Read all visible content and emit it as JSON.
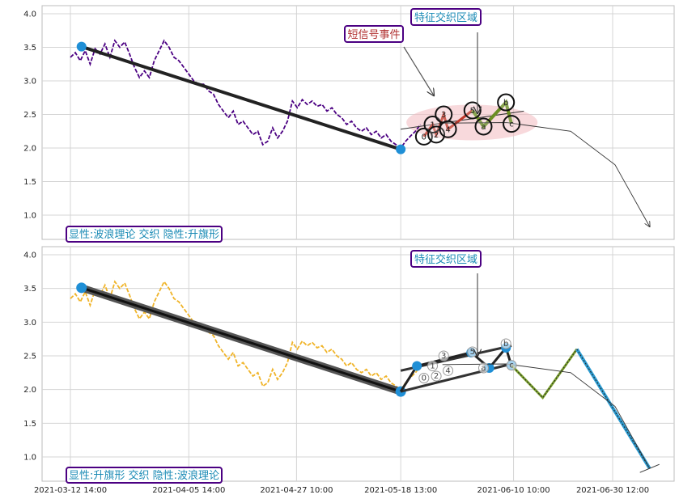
{
  "chart_data": [
    {
      "type": "line",
      "panel": "top",
      "ylim": [
        0.6,
        4.15
      ],
      "yticks": [
        "1.0",
        "1.5",
        "2.0",
        "2.5",
        "3.0",
        "3.5",
        "4.0"
      ],
      "grid": true,
      "price_color": "#4b0082",
      "price_series": [
        [
          "2021-03-12 14:00",
          3.35
        ],
        [
          "2021-03-13 14:00",
          3.42
        ],
        [
          "2021-03-14 14:00",
          3.3
        ],
        [
          "2021-03-15 14:00",
          3.45
        ],
        [
          "2021-03-16 14:00",
          3.25
        ],
        [
          "2021-03-17 14:00",
          3.48
        ],
        [
          "2021-03-18 14:00",
          3.4
        ],
        [
          "2021-03-19 14:00",
          3.55
        ],
        [
          "2021-03-20 14:00",
          3.35
        ],
        [
          "2021-03-21 14:00",
          3.6
        ],
        [
          "2021-03-22 14:00",
          3.5
        ],
        [
          "2021-03-23 14:00",
          3.58
        ],
        [
          "2021-03-24 14:00",
          3.4
        ],
        [
          "2021-03-25 14:00",
          3.2
        ],
        [
          "2021-03-26 14:00",
          3.05
        ],
        [
          "2021-03-27 14:00",
          3.15
        ],
        [
          "2021-03-28 14:00",
          3.05
        ],
        [
          "2021-03-29 14:00",
          3.3
        ],
        [
          "2021-03-30 14:00",
          3.45
        ],
        [
          "2021-03-31 14:00",
          3.6
        ],
        [
          "2021-04-01 14:00",
          3.5
        ],
        [
          "2021-04-02 14:00",
          3.35
        ],
        [
          "2021-04-03 14:00",
          3.3
        ],
        [
          "2021-04-04 14:00",
          3.2
        ],
        [
          "2021-04-05 14:00",
          3.1
        ],
        [
          "2021-04-06 14:00",
          3.0
        ],
        [
          "2021-04-07 14:00",
          2.95
        ],
        [
          "2021-04-08 14:00",
          2.95
        ],
        [
          "2021-04-09 14:00",
          2.85
        ],
        [
          "2021-04-10 14:00",
          2.8
        ],
        [
          "2021-04-11 14:00",
          2.65
        ],
        [
          "2021-04-12 14:00",
          2.55
        ],
        [
          "2021-04-13 14:00",
          2.45
        ],
        [
          "2021-04-14 14:00",
          2.55
        ],
        [
          "2021-04-15 14:00",
          2.35
        ],
        [
          "2021-04-16 14:00",
          2.4
        ],
        [
          "2021-04-17 14:00",
          2.3
        ],
        [
          "2021-04-18 14:00",
          2.2
        ],
        [
          "2021-04-19 14:00",
          2.25
        ],
        [
          "2021-04-20 14:00",
          2.05
        ],
        [
          "2021-04-21 14:00",
          2.1
        ],
        [
          "2021-04-22 14:00",
          2.3
        ],
        [
          "2021-04-23 14:00",
          2.15
        ],
        [
          "2021-04-24 14:00",
          2.25
        ],
        [
          "2021-04-25 14:00",
          2.4
        ],
        [
          "2021-04-26 14:00",
          2.7
        ],
        [
          "2021-04-27 14:00",
          2.6
        ],
        [
          "2021-04-28 14:00",
          2.72
        ],
        [
          "2021-04-29 14:00",
          2.65
        ],
        [
          "2021-04-30 14:00",
          2.7
        ],
        [
          "2021-05-01 14:00",
          2.62
        ],
        [
          "2021-05-02 14:00",
          2.65
        ],
        [
          "2021-05-03 14:00",
          2.55
        ],
        [
          "2021-05-04 14:00",
          2.6
        ],
        [
          "2021-05-05 14:00",
          2.5
        ],
        [
          "2021-05-06 14:00",
          2.45
        ],
        [
          "2021-05-07 14:00",
          2.35
        ],
        [
          "2021-05-08 14:00",
          2.4
        ],
        [
          "2021-05-09 14:00",
          2.3
        ],
        [
          "2021-05-10 14:00",
          2.25
        ],
        [
          "2021-05-11 14:00",
          2.3
        ],
        [
          "2021-05-12 14:00",
          2.2
        ],
        [
          "2021-05-13 14:00",
          2.25
        ],
        [
          "2021-05-14 14:00",
          2.15
        ],
        [
          "2021-05-15 14:00",
          2.2
        ],
        [
          "2021-05-16 14:00",
          2.1
        ],
        [
          "2021-05-17 14:00",
          2.05
        ],
        [
          "2021-05-18 13:00",
          2.0
        ],
        [
          "2021-05-19 13:00",
          2.1
        ],
        [
          "2021-05-20 13:00",
          2.18
        ],
        [
          "2021-05-21 13:00",
          2.25
        ],
        [
          "2021-05-22 13:00",
          2.35
        ]
      ],
      "trend_line": [
        [
          "2021-03-14 20:00",
          3.51
        ],
        [
          "2021-05-18 13:00",
          1.98
        ]
      ],
      "channel_line": [
        [
          "2021-05-18 13:00",
          2.28
        ],
        [
          "2021-06-12 12:00",
          2.55
        ]
      ],
      "projection_curve": [
        [
          "2021-05-27 00:00",
          2.37
        ],
        [
          "2021-06-09 00:00",
          2.38
        ],
        [
          "2021-06-22 00:00",
          2.25
        ],
        [
          "2021-07-01 00:00",
          1.75
        ],
        [
          "2021-07-08 00:00",
          0.83
        ]
      ],
      "wave_points": [
        {
          "label": "0",
          "x": "2021-05-23 06:00",
          "y": 2.17
        },
        {
          "label": "1",
          "x": "2021-05-25 00:00",
          "y": 2.35
        },
        {
          "label": "2",
          "x": "2021-05-25 18:00",
          "y": 2.2
        },
        {
          "label": "3",
          "x": "2021-05-27 06:00",
          "y": 2.5
        },
        {
          "label": "4",
          "x": "2021-05-28 03:00",
          "y": 2.28
        },
        {
          "label": "5",
          "x": "2021-06-02 02:00",
          "y": 2.56
        },
        {
          "label": "a",
          "x": "2021-06-04 08:00",
          "y": 2.32
        },
        {
          "label": "b",
          "x": "2021-06-08 21:00",
          "y": 2.68
        },
        {
          "label": "c",
          "x": "2021-06-10 00:00",
          "y": 2.36
        }
      ],
      "short_signal_label": "短信号事件",
      "feature_zone_label": "特征交织区域",
      "legend_text": "显性:波浪理论 交织 隐性:升旗形"
    },
    {
      "type": "line",
      "panel": "bottom",
      "ylim": [
        0.6,
        4.15
      ],
      "yticks": [
        "1.0",
        "1.5",
        "2.0",
        "2.5",
        "3.0",
        "3.5",
        "4.0"
      ],
      "grid": true,
      "price_color": "#f0b429",
      "flag_pole": [
        [
          "2021-03-14 20:00",
          3.51
        ],
        [
          "2021-05-18 13:00",
          1.97
        ]
      ],
      "flag_upper": [
        [
          "2021-05-18 13:00",
          2.28
        ],
        [
          "2021-06-10 00:00",
          2.65
        ]
      ],
      "flag_lower": [
        [
          "2021-05-18 13:00",
          1.97
        ],
        [
          "2021-06-10 00:00",
          2.38
        ]
      ],
      "flag_points": [
        {
          "label": "",
          "x": "2021-05-21 20:00",
          "y": 2.35
        },
        {
          "label": "",
          "x": "2021-06-01 20:00",
          "y": 2.55
        },
        {
          "label": "",
          "x": "2021-06-05 12:00",
          "y": 2.32
        },
        {
          "label": "",
          "x": "2021-06-08 21:00",
          "y": 2.62
        },
        {
          "label": "",
          "x": "2021-06-09 23:00",
          "y": 2.36
        }
      ],
      "wave_points": [
        {
          "label": "0",
          "x": "2021-05-23 06:00",
          "y": 2.17
        },
        {
          "label": "1",
          "x": "2021-05-25 00:00",
          "y": 2.35
        },
        {
          "label": "2",
          "x": "2021-05-25 18:00",
          "y": 2.2
        },
        {
          "label": "3",
          "x": "2021-05-27 06:00",
          "y": 2.5
        },
        {
          "label": "4",
          "x": "2021-05-28 03:00",
          "y": 2.28
        },
        {
          "label": "5",
          "x": "2021-06-02 02:00",
          "y": 2.56
        },
        {
          "label": "a",
          "x": "2021-06-04 08:00",
          "y": 2.32
        },
        {
          "label": "b",
          "x": "2021-06-08 21:00",
          "y": 2.68
        },
        {
          "label": "c",
          "x": "2021-06-10 00:00",
          "y": 2.36
        }
      ],
      "green_projection": [
        [
          "2021-06-10 00:00",
          2.36
        ],
        [
          "2021-06-16 08:00",
          1.88
        ],
        [
          "2021-06-23 06:00",
          2.6
        ]
      ],
      "blue_projection": [
        [
          "2021-06-23 06:00",
          2.6
        ],
        [
          "2021-07-08 00:00",
          0.83
        ]
      ],
      "projection_curve": [
        [
          "2021-05-27 00:00",
          2.37
        ],
        [
          "2021-06-09 00:00",
          2.38
        ],
        [
          "2021-06-22 00:00",
          2.25
        ],
        [
          "2021-07-01 00:00",
          1.75
        ],
        [
          "2021-07-08 00:00",
          0.83
        ]
      ],
      "feature_zone_label": "特征交织区域",
      "legend_text": "显性:升旗形 交织 隐性:波浪理论",
      "xtick_labels": [
        "2021-03-12 14:00",
        "2021-04-05 14:00",
        "2021-04-27 10:00",
        "2021-05-18 13:00",
        "2021-06-10 10:00",
        "2021-06-30 12:00"
      ]
    }
  ],
  "top": {
    "short_signal_label": "短信号事件",
    "feature_zone_label": "特征交织区域",
    "legend_text": "显性:波浪理论 交织 隐性:升旗形"
  },
  "bottom": {
    "feature_zone_label": "特征交织区域",
    "legend_text": "显性:升旗形 交织 隐性:波浪理论"
  },
  "x_ticks": [
    "2021-03-12 14:00",
    "2021-04-05 14:00",
    "2021-04-27 10:00",
    "2021-05-18 13:00",
    "2021-06-10 10:00",
    "2021-06-30 12:00"
  ]
}
